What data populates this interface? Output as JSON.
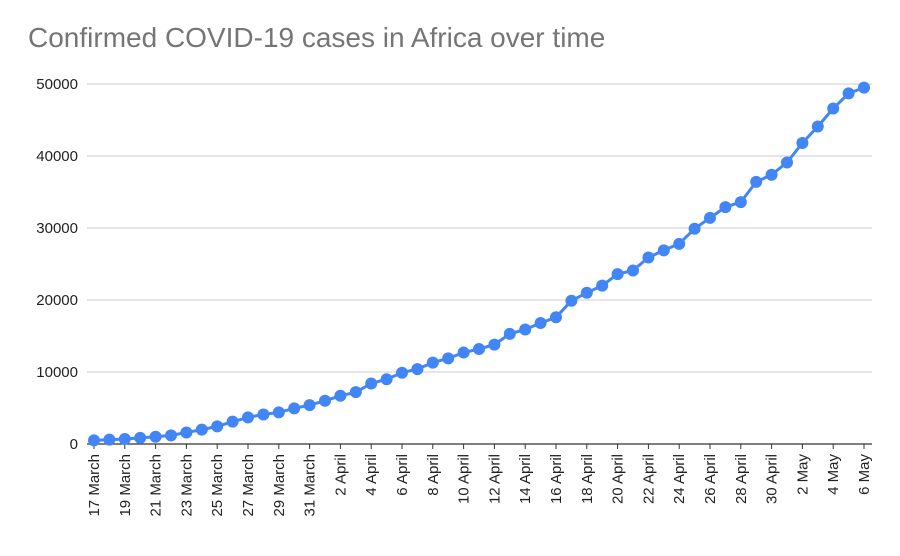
{
  "chart_data": {
    "type": "line",
    "title": "Confirmed COVID-19 cases in Africa over time",
    "xlabel": "",
    "ylabel": "",
    "ylim": [
      0,
      50000
    ],
    "y_ticks": [
      "0",
      "10000",
      "20000",
      "30000",
      "40000",
      "50000"
    ],
    "x_tick_labels": [
      "17 March",
      "19 March",
      "21 March",
      "23 March",
      "25 March",
      "27 March",
      "29 March",
      "31 March",
      "2 April",
      "4 April",
      "6 April",
      "8 April",
      "10 April",
      "12 April",
      "14 April",
      "16 April",
      "18 April",
      "20 April",
      "22 April",
      "24 April",
      "26 April",
      "28 April",
      "30 April",
      "2 May",
      "4 May",
      "6 May"
    ],
    "grid": true,
    "legend": "none",
    "line_color": "#4285f4",
    "x": [
      "17 March",
      "18 March",
      "19 March",
      "20 March",
      "21 March",
      "22 March",
      "23 March",
      "24 March",
      "25 March",
      "26 March",
      "27 March",
      "28 March",
      "29 March",
      "30 March",
      "31 March",
      "1 April",
      "2 April",
      "3 April",
      "4 April",
      "5 April",
      "6 April",
      "7 April",
      "8 April",
      "9 April",
      "10 April",
      "11 April",
      "12 April",
      "13 April",
      "14 April",
      "15 April",
      "16 April",
      "17 April",
      "18 April",
      "19 April",
      "20 April",
      "21 April",
      "22 April",
      "23 April",
      "24 April",
      "25 April",
      "26 April",
      "27 April",
      "28 April",
      "29 April",
      "30 April",
      "1 May",
      "2 May",
      "3 May",
      "4 May",
      "5 May",
      "6 May"
    ],
    "values": [
      500,
      600,
      700,
      850,
      1000,
      1200,
      1600,
      2000,
      2450,
      3100,
      3700,
      4100,
      4400,
      4950,
      5400,
      6000,
      6700,
      7200,
      8400,
      9000,
      9900,
      10400,
      11300,
      11900,
      12700,
      13200,
      13800,
      15300,
      15900,
      16800,
      17600,
      19900,
      21000,
      22000,
      23600,
      24100,
      25900,
      26900,
      27800,
      29900,
      31400,
      32900,
      33600,
      36400,
      37400,
      39100,
      41800,
      44100,
      46600,
      48700,
      49500
    ]
  }
}
